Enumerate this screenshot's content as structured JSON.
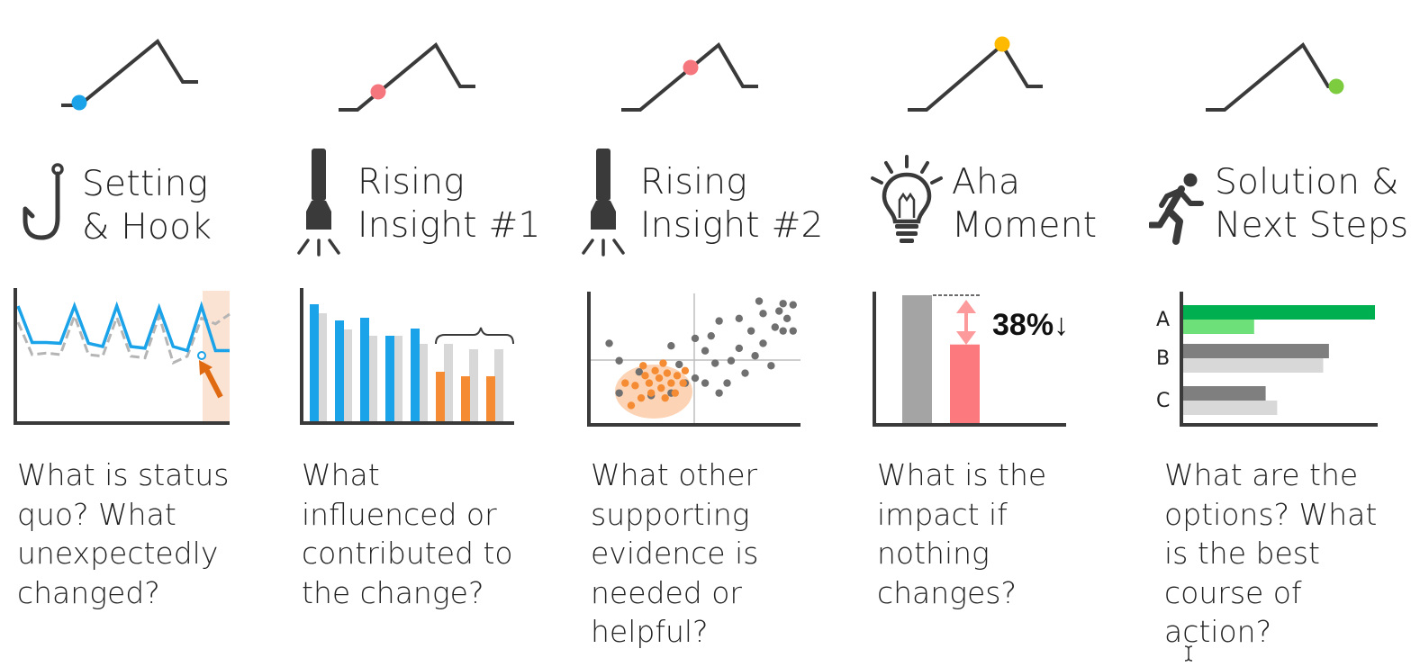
{
  "columns": [
    {
      "id": "setting",
      "dot_color": "#1aa3e8",
      "icon": "hook-icon",
      "title_lines": [
        "Setting",
        "& Hook"
      ],
      "question_lines": [
        "What is status",
        "quo? What",
        "unexpectedly",
        "changed?"
      ]
    },
    {
      "id": "rising1",
      "dot_color": "#f6767e",
      "icon": "flashlight-icon",
      "title_lines": [
        "Rising",
        "Insight #1"
      ],
      "question_lines": [
        "What",
        "influenced or",
        "contributed to",
        "the change?"
      ]
    },
    {
      "id": "rising2",
      "dot_color": "#f6767e",
      "icon": "flashlight-icon",
      "title_lines": [
        "Rising",
        "Insight #2"
      ],
      "question_lines": [
        "What other",
        "supporting",
        "evidence is",
        "needed or",
        "helpful?"
      ]
    },
    {
      "id": "aha",
      "dot_color": "#ffba00",
      "icon": "lightbulb-icon",
      "title_lines": [
        "Aha",
        "Moment"
      ],
      "question_lines": [
        "What is the",
        "impact if",
        "nothing",
        "changes?"
      ]
    },
    {
      "id": "solution",
      "dot_color": "#7dcb3f",
      "icon": "running-person-icon",
      "title_lines": [
        "Solution &",
        "Next Steps"
      ],
      "question_lines": [
        "What are the",
        "options? What",
        "is the best",
        "course of",
        "action?"
      ]
    }
  ],
  "colors": {
    "dark": "#3a3a3a",
    "blue": "#1aa3e8",
    "gray_dashed": "#b5b5b5",
    "highlight": "#fbe3d3",
    "orange": "#f58c33",
    "orange_arrow": "#e06a12",
    "light_gray": "#d8d8d8",
    "mid_gray": "#a4a4a4",
    "pink": "#fc7a7e",
    "green_dark": "#00b050",
    "green_light": "#6ee07a"
  },
  "chart_data": [
    {
      "type": "line",
      "series": [
        {
          "values": [
            80,
            40,
            42,
            40,
            88,
            40,
            38,
            86,
            38,
            36,
            88,
            30,
            38,
            85,
            78,
            90
          ]
        },
        {
          "values": [
            100,
            55,
            55,
            54,
            100,
            54,
            50,
            100,
            50,
            48,
            98,
            50,
            45,
            100,
            45,
            45
          ]
        }
      ],
      "annotation": "highlighted-final-period"
    },
    {
      "type": "bar",
      "series": [
        {
          "values": [
            130,
            112,
            115,
            95,
            103
          ]
        },
        {
          "values": [
            120,
            102,
            95,
            95,
            86,
            86,
            80,
            80
          ]
        },
        {
          "values": [
            55,
            50,
            50
          ]
        }
      ]
    },
    {
      "type": "scatter",
      "points_gray": [
        [
          0.07,
          0.62
        ],
        [
          0.12,
          0.22
        ],
        [
          0.12,
          0.48
        ],
        [
          0.22,
          0.39
        ],
        [
          0.28,
          0.2
        ],
        [
          0.38,
          0.6
        ],
        [
          0.38,
          0.22
        ],
        [
          0.45,
          0.3
        ],
        [
          0.5,
          0.34
        ],
        [
          0.55,
          0.3
        ],
        [
          0.55,
          0.56
        ],
        [
          0.6,
          0.46
        ],
        [
          0.62,
          0.22
        ],
        [
          0.66,
          0.3
        ],
        [
          0.68,
          0.48
        ],
        [
          0.72,
          0.58
        ],
        [
          0.75,
          0.38
        ],
        [
          0.78,
          0.72
        ],
        [
          0.8,
          0.52
        ],
        [
          0.84,
          0.62
        ],
        [
          0.88,
          0.44
        ],
        [
          0.9,
          0.75
        ],
        [
          0.92,
          0.88
        ],
        [
          0.96,
          0.82
        ],
        [
          0.94,
          0.72
        ],
        [
          0.99,
          0.93
        ],
        [
          0.94,
          0.94
        ],
        [
          0.84,
          0.86
        ],
        [
          0.72,
          0.82
        ],
        [
          0.62,
          0.8
        ],
        [
          0.5,
          0.66
        ],
        [
          0.58,
          0.68
        ],
        [
          0.42,
          0.45
        ],
        [
          0.99,
          0.72
        ],
        [
          0.82,
          0.96
        ]
      ],
      "points_orange": [
        [
          0.15,
          0.3
        ],
        [
          0.18,
          0.12
        ],
        [
          0.2,
          0.28
        ],
        [
          0.23,
          0.18
        ],
        [
          0.25,
          0.36
        ],
        [
          0.27,
          0.3
        ],
        [
          0.28,
          0.22
        ],
        [
          0.32,
          0.34
        ],
        [
          0.33,
          0.26
        ],
        [
          0.35,
          0.18
        ],
        [
          0.36,
          0.38
        ],
        [
          0.38,
          0.3
        ],
        [
          0.4,
          0.22
        ],
        [
          0.41,
          0.36
        ],
        [
          0.44,
          0.3
        ],
        [
          0.3,
          0.4
        ],
        [
          0.24,
          0.44
        ],
        [
          0.34,
          0.46
        ],
        [
          0.45,
          0.4
        ]
      ]
    },
    {
      "type": "bar",
      "categories": [
        "",
        ""
      ],
      "values": [
        100,
        62
      ],
      "data_label": "38%↓"
    },
    {
      "type": "bar",
      "orientation": "horizontal",
      "categories": [
        "A",
        "B",
        "C"
      ],
      "series": [
        {
          "values": [
            100,
            76,
            43
          ]
        },
        {
          "values": [
            37,
            73,
            49
          ]
        }
      ]
    }
  ]
}
